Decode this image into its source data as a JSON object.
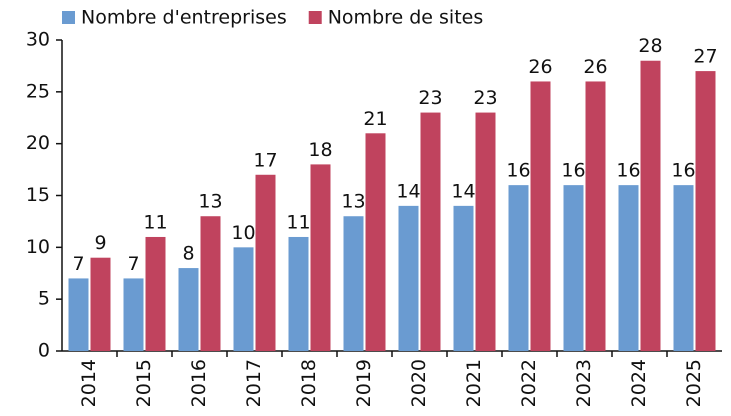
{
  "chart_data": {
    "type": "bar",
    "categories": [
      "2014",
      "2015",
      "2016",
      "2017",
      "2018",
      "2019",
      "2020",
      "2021",
      "2022",
      "2023",
      "2024",
      "2025"
    ],
    "series": [
      {
        "name": "Nombre d'entreprises",
        "color": "#6a9bd1",
        "values": [
          7,
          7,
          8,
          10,
          11,
          13,
          14,
          14,
          16,
          16,
          16,
          16
        ]
      },
      {
        "name": "Nombre de sites",
        "color": "#c0435e",
        "values": [
          9,
          11,
          13,
          17,
          18,
          21,
          23,
          23,
          26,
          26,
          28,
          27
        ]
      }
    ],
    "ylim": [
      0,
      30
    ],
    "yticks": [
      0,
      5,
      10,
      15,
      20,
      25,
      30
    ],
    "grid": false,
    "legend": "top-left"
  }
}
